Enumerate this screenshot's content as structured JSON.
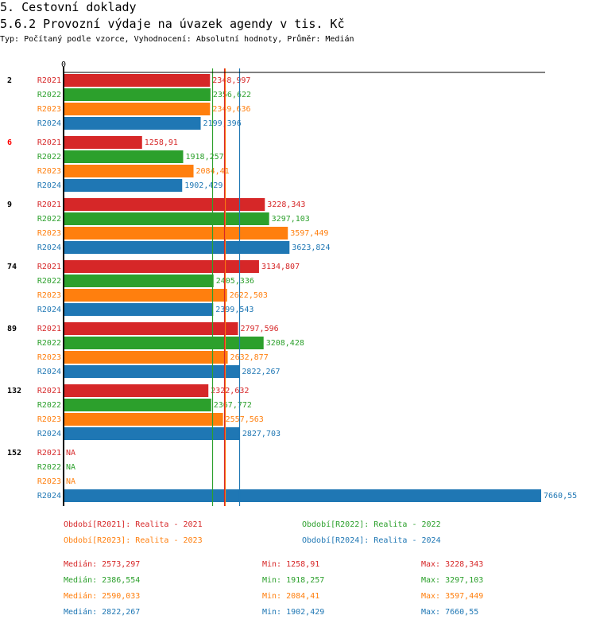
{
  "header": {
    "section": "5. Cestovní doklady",
    "title": "5.6.2 Provozní výdaje na úvazek agendy v tis. Kč",
    "subtitle": "Typ: Počítaný podle vzorce, Vyhodnocení: Absolutní hodnoty, Průměr: Medián"
  },
  "colors": {
    "R2021": "#d62728",
    "R2022": "#2ca02c",
    "R2023": "#ff7f0e",
    "R2024": "#1f77b4",
    "highlight_group": "#ff0000"
  },
  "chart_data": {
    "type": "bar",
    "orientation": "horizontal",
    "title": "5.6.2 Provozní výdaje na úvazek agendy v tis. Kč",
    "xlabel": "",
    "ylabel": "",
    "axis_zero_label": "0",
    "xlim": [
      0,
      7660.55
    ],
    "grid": false,
    "categories": [
      "2",
      "6",
      "9",
      "74",
      "89",
      "132",
      "152"
    ],
    "highlighted_category": "6",
    "series": [
      {
        "name": "R2021",
        "values": [
          2348.997,
          1258.91,
          3228.343,
          3134.807,
          2797.596,
          2322.632,
          null
        ],
        "labels": [
          "2348,997",
          "1258,91",
          "3228,343",
          "3134,807",
          "2797,596",
          "2322,632",
          "NA"
        ]
      },
      {
        "name": "R2022",
        "values": [
          2356.622,
          1918.257,
          3297.103,
          2405.336,
          3208.428,
          2367.772,
          null
        ],
        "labels": [
          "2356,622",
          "1918,257",
          "3297,103",
          "2405,336",
          "3208,428",
          "2367,772",
          "NA"
        ]
      },
      {
        "name": "R2023",
        "values": [
          2349.636,
          2084.41,
          3597.449,
          2622.503,
          2632.877,
          2557.563,
          null
        ],
        "labels": [
          "2349,636",
          "2084,41",
          "3597,449",
          "2622,503",
          "2632,877",
          "2557,563",
          "NA"
        ]
      },
      {
        "name": "R2024",
        "values": [
          2199.396,
          1902.429,
          3623.824,
          2399.543,
          2822.267,
          2827.703,
          7660.55
        ],
        "labels": [
          "2199,396",
          "1902,429",
          "3623,824",
          "2399,543",
          "2822,267",
          "2827,703",
          "7660,55"
        ]
      }
    ],
    "reference_lines": [
      {
        "series": "R2022",
        "type": "median",
        "value": 2386.554
      },
      {
        "series": "R2023",
        "type": "median",
        "value": 2590.033
      },
      {
        "series": "R2021",
        "type": "median",
        "value": 2573.297
      },
      {
        "series": "R2024",
        "type": "median",
        "value": 2822.267
      }
    ],
    "legend": [
      {
        "series": "R2021",
        "label": "Období[R2021]: Realita - 2021"
      },
      {
        "series": "R2022",
        "label": "Období[R2022]: Realita - 2022"
      },
      {
        "series": "R2023",
        "label": "Období[R2023]: Realita - 2023"
      },
      {
        "series": "R2024",
        "label": "Období[R2024]: Realita - 2024"
      }
    ],
    "legend_position": "bottom",
    "stats": [
      {
        "series": "R2021",
        "median": "Medián: 2573,297",
        "min": "Min: 1258,91",
        "max": "Max: 3228,343"
      },
      {
        "series": "R2022",
        "median": "Medián: 2386,554",
        "min": "Min: 1918,257",
        "max": "Max: 3297,103"
      },
      {
        "series": "R2023",
        "median": "Medián: 2590,033",
        "min": "Min: 2084,41",
        "max": "Max: 3597,449"
      },
      {
        "series": "R2024",
        "median": "Medián: 2822,267",
        "min": "Min: 1902,429",
        "max": "Max: 7660,55"
      }
    ]
  }
}
